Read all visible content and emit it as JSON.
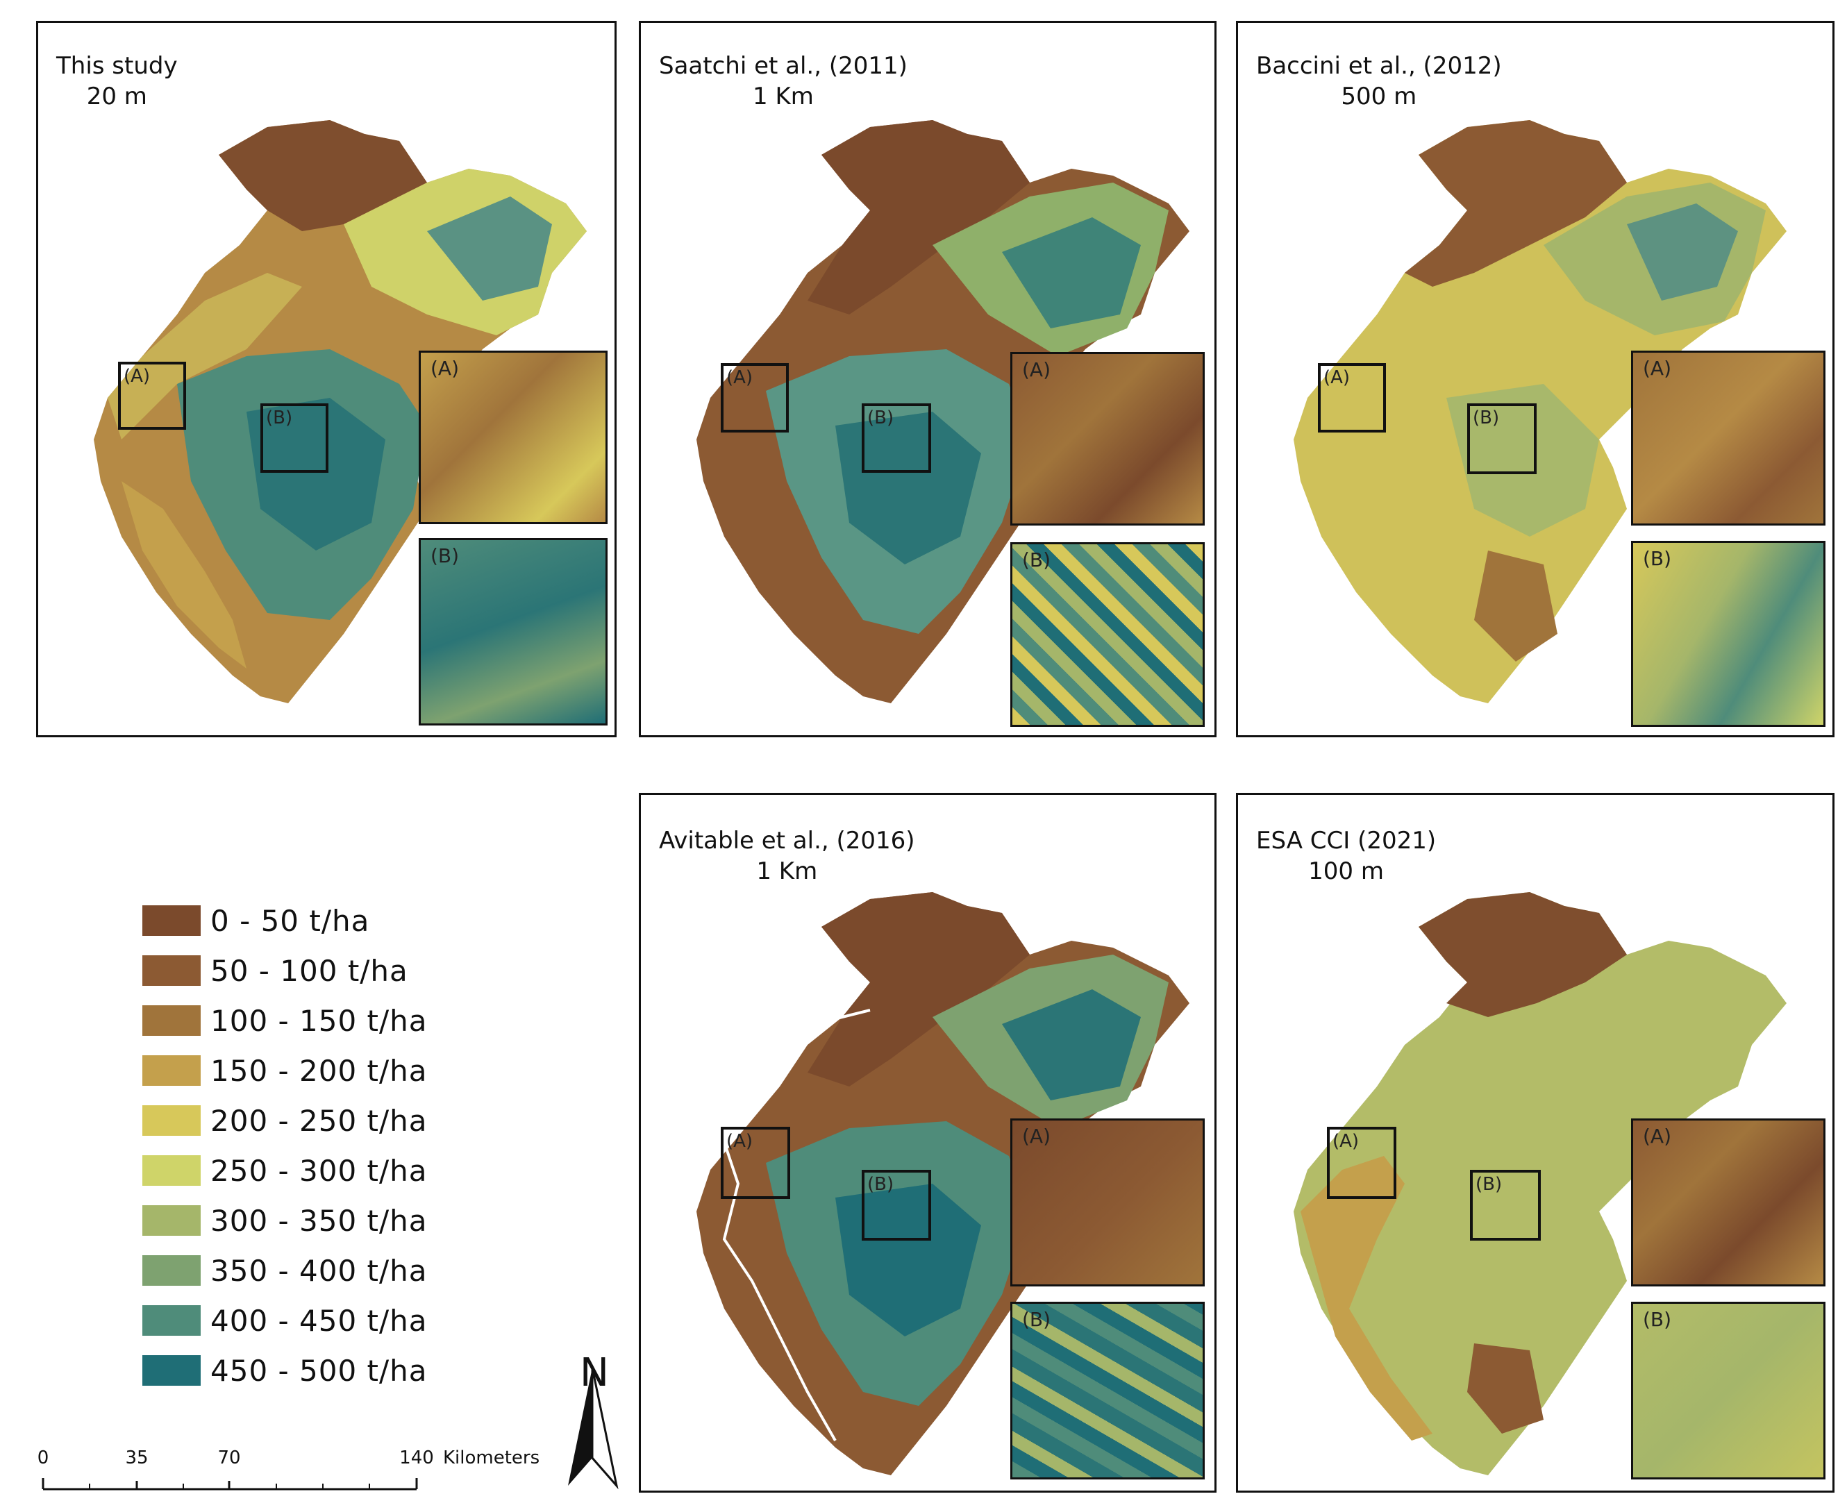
{
  "panels": [
    {
      "id": "this-study",
      "title_line1": "This study",
      "title_line2": "20 m"
    },
    {
      "id": "saatchi",
      "title_line1": "Saatchi et al., (2011)",
      "title_line2": "1 Km"
    },
    {
      "id": "baccini",
      "title_line1": "Baccini et al., (2012)",
      "title_line2": "500 m"
    },
    {
      "id": "avitable",
      "title_line1": "Avitable et al., (2016)",
      "title_line2": "1 Km"
    },
    {
      "id": "esa",
      "title_line1": "ESA CCI (2021)",
      "title_line2": "100 m"
    }
  ],
  "box_labels": {
    "a": "(A)",
    "b": "(B)"
  },
  "legend": [
    {
      "label": "0 - 50 t/ha",
      "color": "#7b4a2c"
    },
    {
      "label": "50 - 100 t/ha",
      "color": "#8c5a33"
    },
    {
      "label": "100 - 150 t/ha",
      "color": "#a0743b"
    },
    {
      "label": "150 - 200 t/ha",
      "color": "#c4a04c"
    },
    {
      "label": "200 - 250 t/ha",
      "color": "#d7c85a"
    },
    {
      "label": "250 - 300 t/ha",
      "color": "#cfd469"
    },
    {
      "label": "300 - 350 t/ha",
      "color": "#a5b66a"
    },
    {
      "label": "350 - 400 t/ha",
      "color": "#7ea270"
    },
    {
      "label": "400 - 450 t/ha",
      "color": "#4f8c7a"
    },
    {
      "label": "450 - 500 t/ha",
      "color": "#1f6e76"
    }
  ],
  "scale": {
    "ticks": [
      "0",
      "35",
      "70",
      "140"
    ],
    "unit": "Kilometers"
  },
  "north": "N"
}
